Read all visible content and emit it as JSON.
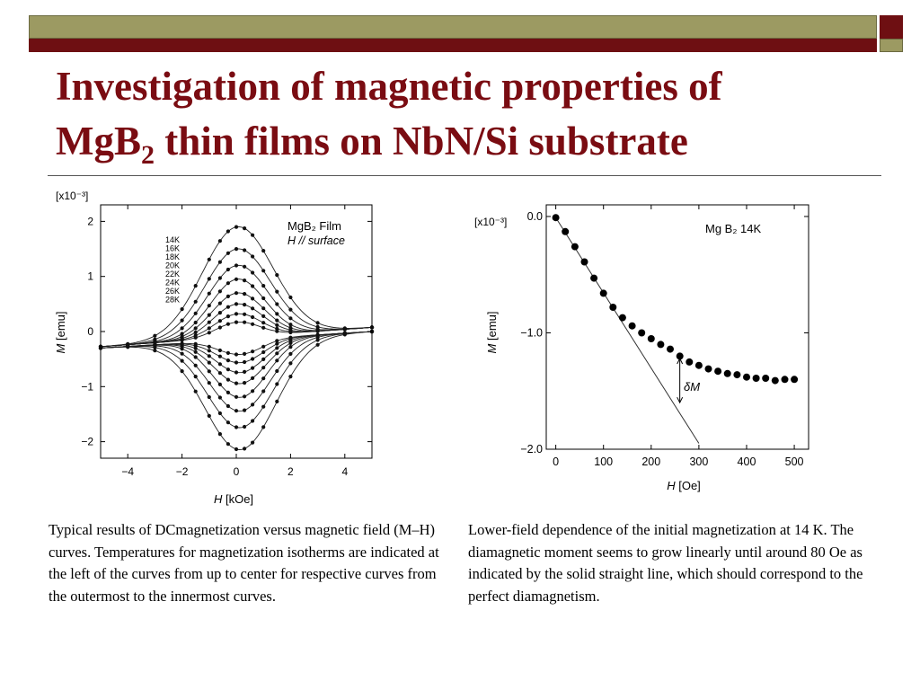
{
  "slide": {
    "title_line1": "Investigation of magnetic properties of",
    "title_line2_pre": "MgB",
    "title_line2_sub": "2",
    "title_line2_post": " thin films on NbN/Si substrate",
    "colors": {
      "title": "#7a0c12",
      "olive": "#9c9a62",
      "maroon": "#6e0f12"
    }
  },
  "captions": {
    "left": "Typical results of DCmagnetization versus magnetic field (M–H) curves. Temperatures for magnetization isotherms are indicated at the left of the curves from up to center for respective curves from the outermost to the innermost curves.",
    "right": "Lower-field dependence of the initial magnetization at 14 K. The diamagnetic moment seems to grow linearly until around 80 Oe as indicated by the solid straight line, which should correspond to the perfect diamagnetism."
  },
  "chart_data": [
    {
      "type": "line",
      "scale_label": "[x10⁻³]",
      "xlabel_var": "H",
      "xlabel_unit": "[kOe]",
      "ylabel_var": "M",
      "ylabel_unit": "[emu]",
      "xlim": [
        -5,
        5
      ],
      "ylim": [
        -2.3,
        2.3
      ],
      "x_ticks": [
        -4,
        -2,
        0,
        2,
        4
      ],
      "x_tick_labels": [
        "−4",
        "−2",
        "0",
        "2",
        "4"
      ],
      "y_ticks": [
        2,
        1,
        0,
        -1,
        -2
      ],
      "y_tick_labels": [
        "2",
        "1",
        "0",
        "−1",
        "−2"
      ],
      "annotation_line1": "MgB₂ Film",
      "annotation_line2": "H // surface",
      "temperatures": [
        "14K",
        "16K",
        "18K",
        "20K",
        "22K",
        "24K",
        "26K",
        "28K"
      ],
      "peak_amplitudes": [
        2.0,
        1.6,
        1.3,
        1.05,
        0.8,
        0.6,
        0.42,
        0.27
      ],
      "peak_widths_koe": [
        1.3,
        1.2,
        1.1,
        1.0,
        0.95,
        0.9,
        0.85,
        0.8
      ],
      "grid": false
    },
    {
      "type": "scatter",
      "scale_label": "[x10⁻³]",
      "xlabel_var": "H",
      "xlabel_unit": "[Oe]",
      "ylabel_var": "M",
      "ylabel_unit": "[emu]",
      "xlim": [
        -20,
        530
      ],
      "ylim": [
        -2.0,
        0.1
      ],
      "x_ticks": [
        0,
        100,
        200,
        300,
        400,
        500
      ],
      "x_tick_labels": [
        "0",
        "100",
        "200",
        "300",
        "400",
        "500"
      ],
      "y_ticks": [
        0.0,
        -1.0,
        -2.0
      ],
      "y_tick_labels": [
        "0.0",
        "−1.0",
        "−2.0"
      ],
      "annotation": "Mg B₂ 14K",
      "delta_label": "δM",
      "points": [
        [
          0,
          -0.01
        ],
        [
          20,
          -0.13
        ],
        [
          40,
          -0.26
        ],
        [
          60,
          -0.39
        ],
        [
          80,
          -0.53
        ],
        [
          100,
          -0.66
        ],
        [
          120,
          -0.78
        ],
        [
          140,
          -0.87
        ],
        [
          160,
          -0.94
        ],
        [
          180,
          -1.0
        ],
        [
          200,
          -1.05
        ],
        [
          220,
          -1.1
        ],
        [
          240,
          -1.14
        ],
        [
          260,
          -1.2
        ],
        [
          280,
          -1.25
        ],
        [
          300,
          -1.28
        ],
        [
          320,
          -1.31
        ],
        [
          340,
          -1.33
        ],
        [
          360,
          -1.35
        ],
        [
          380,
          -1.36
        ],
        [
          400,
          -1.38
        ],
        [
          420,
          -1.39
        ],
        [
          440,
          -1.39
        ],
        [
          460,
          -1.41
        ],
        [
          480,
          -1.4
        ],
        [
          500,
          -1.4
        ]
      ],
      "line": {
        "x": [
          0,
          300
        ],
        "y": [
          -0.01,
          -1.95
        ]
      },
      "delta_arrow": {
        "x": 260,
        "from": -1.22,
        "to": -1.6
      },
      "grid": false
    }
  ]
}
